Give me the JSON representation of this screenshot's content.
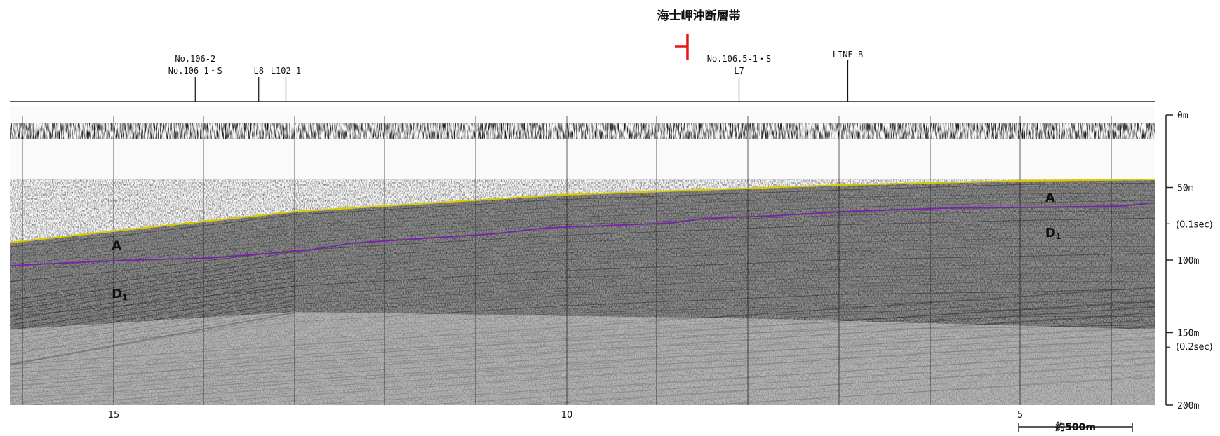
{
  "title": "海士岬沖断層帯",
  "fault_marker_color": "#e8141c",
  "horizon_colors": {
    "seafloor": "#d8c800",
    "horizon_A": "#7a1fb0"
  },
  "survey_lines": [
    {
      "label_top": "No.106-2",
      "label_bottom": "No.106-1・S",
      "position_km": 14.1
    },
    {
      "label_top": "",
      "label_bottom": "L8",
      "position_km": 13.4
    },
    {
      "label_top": "",
      "label_bottom": "L102-1",
      "position_km": 13.1
    },
    {
      "label_top": "No.106.5-1・S",
      "label_bottom": "L7",
      "position_km": 8.1
    },
    {
      "label_top": "LINE-B",
      "label_bottom": "",
      "position_km": 6.9
    }
  ],
  "depth_labels": [
    {
      "text": "0m",
      "depth_m": 0
    },
    {
      "text": "50m",
      "depth_m": 50
    },
    {
      "text": "(0.1sec)",
      "depth_m": 75
    },
    {
      "text": "100m",
      "depth_m": 100
    },
    {
      "text": "150m",
      "depth_m": 150
    },
    {
      "text": "(0.2sec)",
      "depth_m": 160
    },
    {
      "text": "200m",
      "depth_m": 200
    }
  ],
  "distance_ticks": [
    {
      "label": "15",
      "km": 15
    },
    {
      "label": "10",
      "km": 10
    },
    {
      "label": "5",
      "km": 5
    }
  ],
  "scale_bar": {
    "label": "約500m"
  },
  "unit_labels": [
    {
      "name": "A",
      "main": "A",
      "sub": "",
      "km": 15.1,
      "depth_m": 93
    },
    {
      "name": "D1",
      "main": "D",
      "sub": "1",
      "km": 15.1,
      "depth_m": 126
    },
    {
      "name": "A",
      "main": "A",
      "sub": "",
      "km": 4.8,
      "depth_m": 60
    },
    {
      "name": "D1",
      "main": "D",
      "sub": "1",
      "km": 4.8,
      "depth_m": 84
    }
  ],
  "fault_marker_km": 8.7
}
